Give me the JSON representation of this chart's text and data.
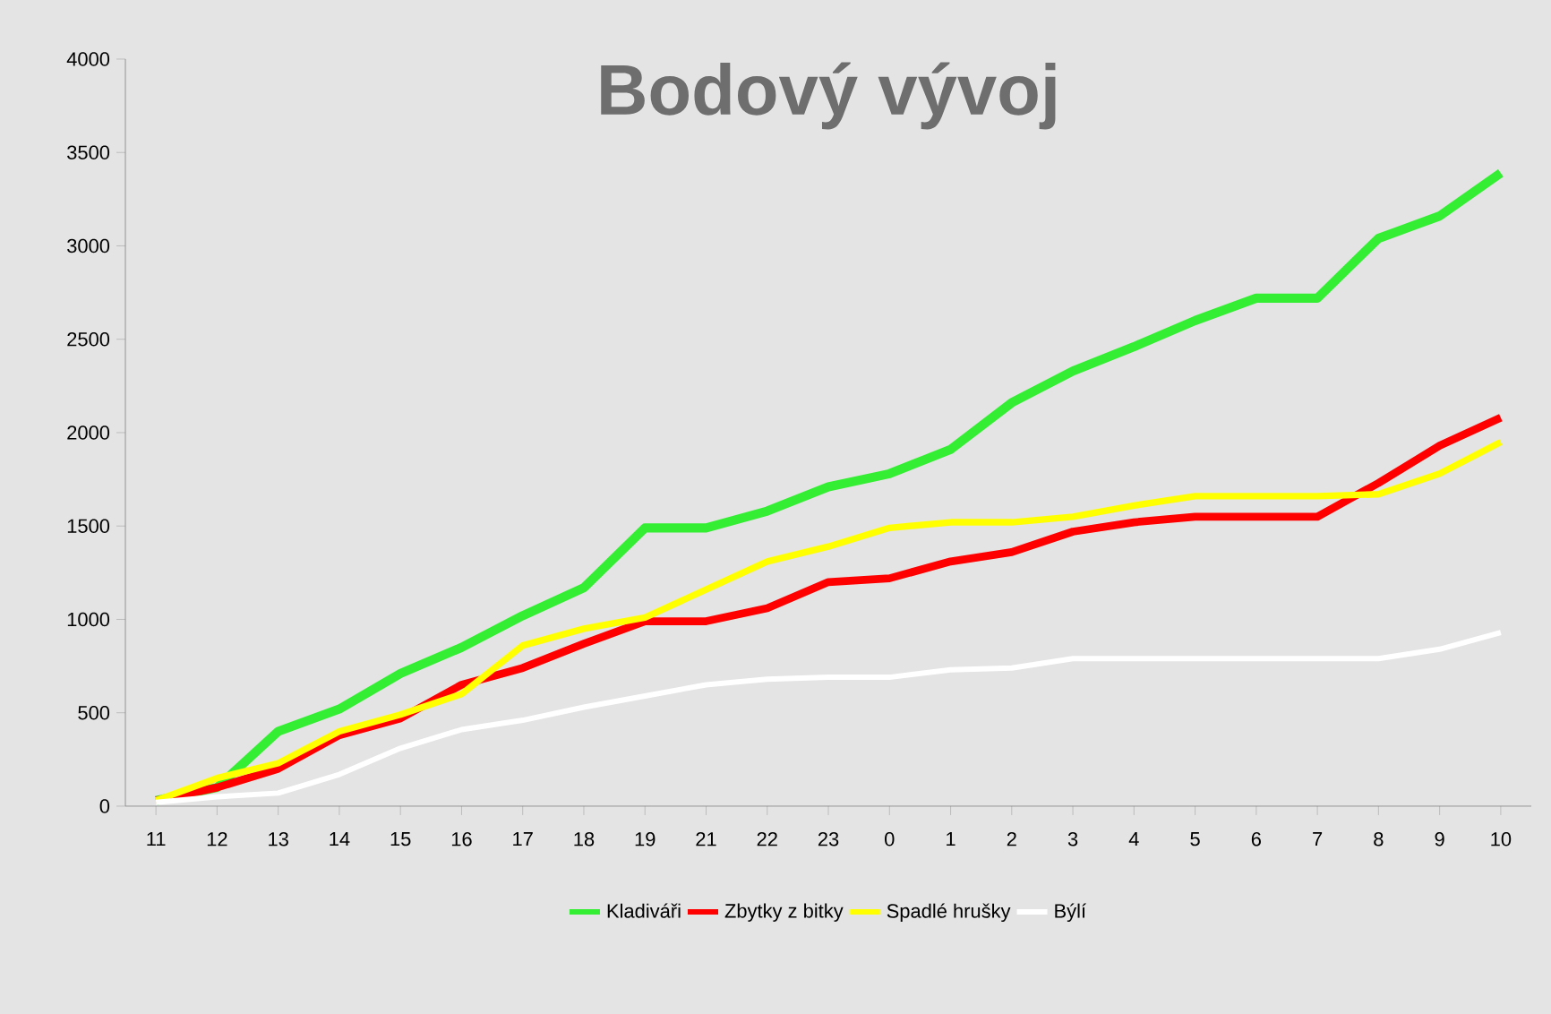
{
  "chart_data": {
    "type": "line",
    "title": "Bodový vývoj",
    "categories": [
      "11",
      "12",
      "13",
      "14",
      "15",
      "16",
      "17",
      "18",
      "19",
      "21",
      "22",
      "23",
      "0",
      "1",
      "2",
      "3",
      "4",
      "5",
      "6",
      "7",
      "8",
      "9",
      "10"
    ],
    "series": [
      {
        "name": "Kladiváři",
        "color": "#33ee33",
        "values": [
          30,
          100,
          400,
          520,
          710,
          850,
          1020,
          1170,
          1490,
          1490,
          1580,
          1710,
          1780,
          1910,
          2160,
          2330,
          2460,
          2600,
          2720,
          2720,
          3040,
          3160,
          3390
        ]
      },
      {
        "name": "Zbytky z bitky",
        "color": "#ff0000",
        "values": [
          30,
          100,
          200,
          380,
          470,
          650,
          740,
          870,
          990,
          990,
          1060,
          1200,
          1220,
          1310,
          1360,
          1470,
          1520,
          1550,
          1550,
          1550,
          1730,
          1930,
          2080
        ]
      },
      {
        "name": "Spadlé hrušky",
        "color": "#ffff00",
        "values": [
          30,
          150,
          230,
          400,
          490,
          600,
          860,
          950,
          1010,
          1160,
          1310,
          1390,
          1490,
          1520,
          1520,
          1550,
          1610,
          1660,
          1660,
          1660,
          1670,
          1780,
          1950
        ]
      },
      {
        "name": "Býlí",
        "color": "#ffffff",
        "values": [
          20,
          50,
          70,
          170,
          310,
          410,
          460,
          530,
          590,
          650,
          680,
          690,
          690,
          730,
          740,
          790,
          790,
          790,
          790,
          790,
          790,
          840,
          930
        ]
      }
    ],
    "ylim": [
      0,
      4000
    ],
    "yticks": [
      0,
      500,
      1000,
      1500,
      2000,
      2500,
      3000,
      3500,
      4000
    ],
    "legend": "bottom",
    "grid": false,
    "marker": "none",
    "line_style": "solid"
  }
}
